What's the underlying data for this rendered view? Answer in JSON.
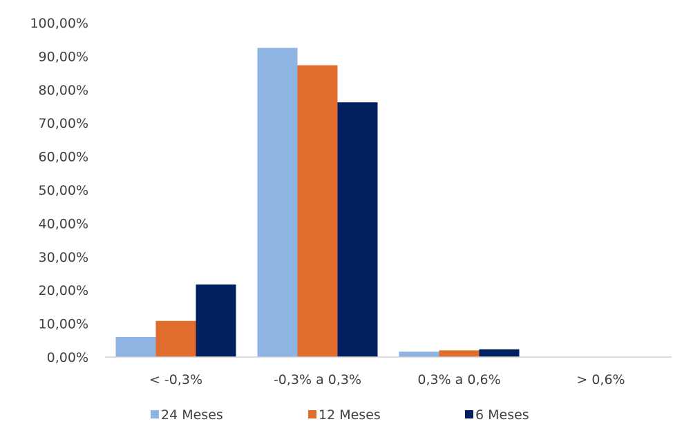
{
  "chart_data": {
    "type": "bar",
    "title": "",
    "xlabel": "",
    "ylabel": "",
    "categories": [
      "< -0,3%",
      "-0,3% a 0,3%",
      "0,3% a 0,6%",
      "> 0,6%"
    ],
    "series": [
      {
        "name": "24 Meses",
        "color": "#8EB4E3",
        "values": [
          6.0,
          92.5,
          1.6,
          0.0
        ]
      },
      {
        "name": "12 Meses",
        "color": "#E06C2E",
        "values": [
          10.8,
          87.3,
          2.0,
          0.0
        ]
      },
      {
        "name": "6 Meses",
        "color": "#002060",
        "values": [
          21.7,
          76.2,
          2.3,
          0.0
        ]
      }
    ],
    "ylim": [
      0,
      100
    ],
    "yticks": [
      0,
      10,
      20,
      30,
      40,
      50,
      60,
      70,
      80,
      90,
      100
    ],
    "ytick_labels": [
      "0,00%",
      "10,00%",
      "20,00%",
      "30,00%",
      "40,00%",
      "50,00%",
      "60,00%",
      "70,00%",
      "80,00%",
      "90,00%",
      "100,00%"
    ],
    "grid": false,
    "legend_position": "bottom"
  }
}
